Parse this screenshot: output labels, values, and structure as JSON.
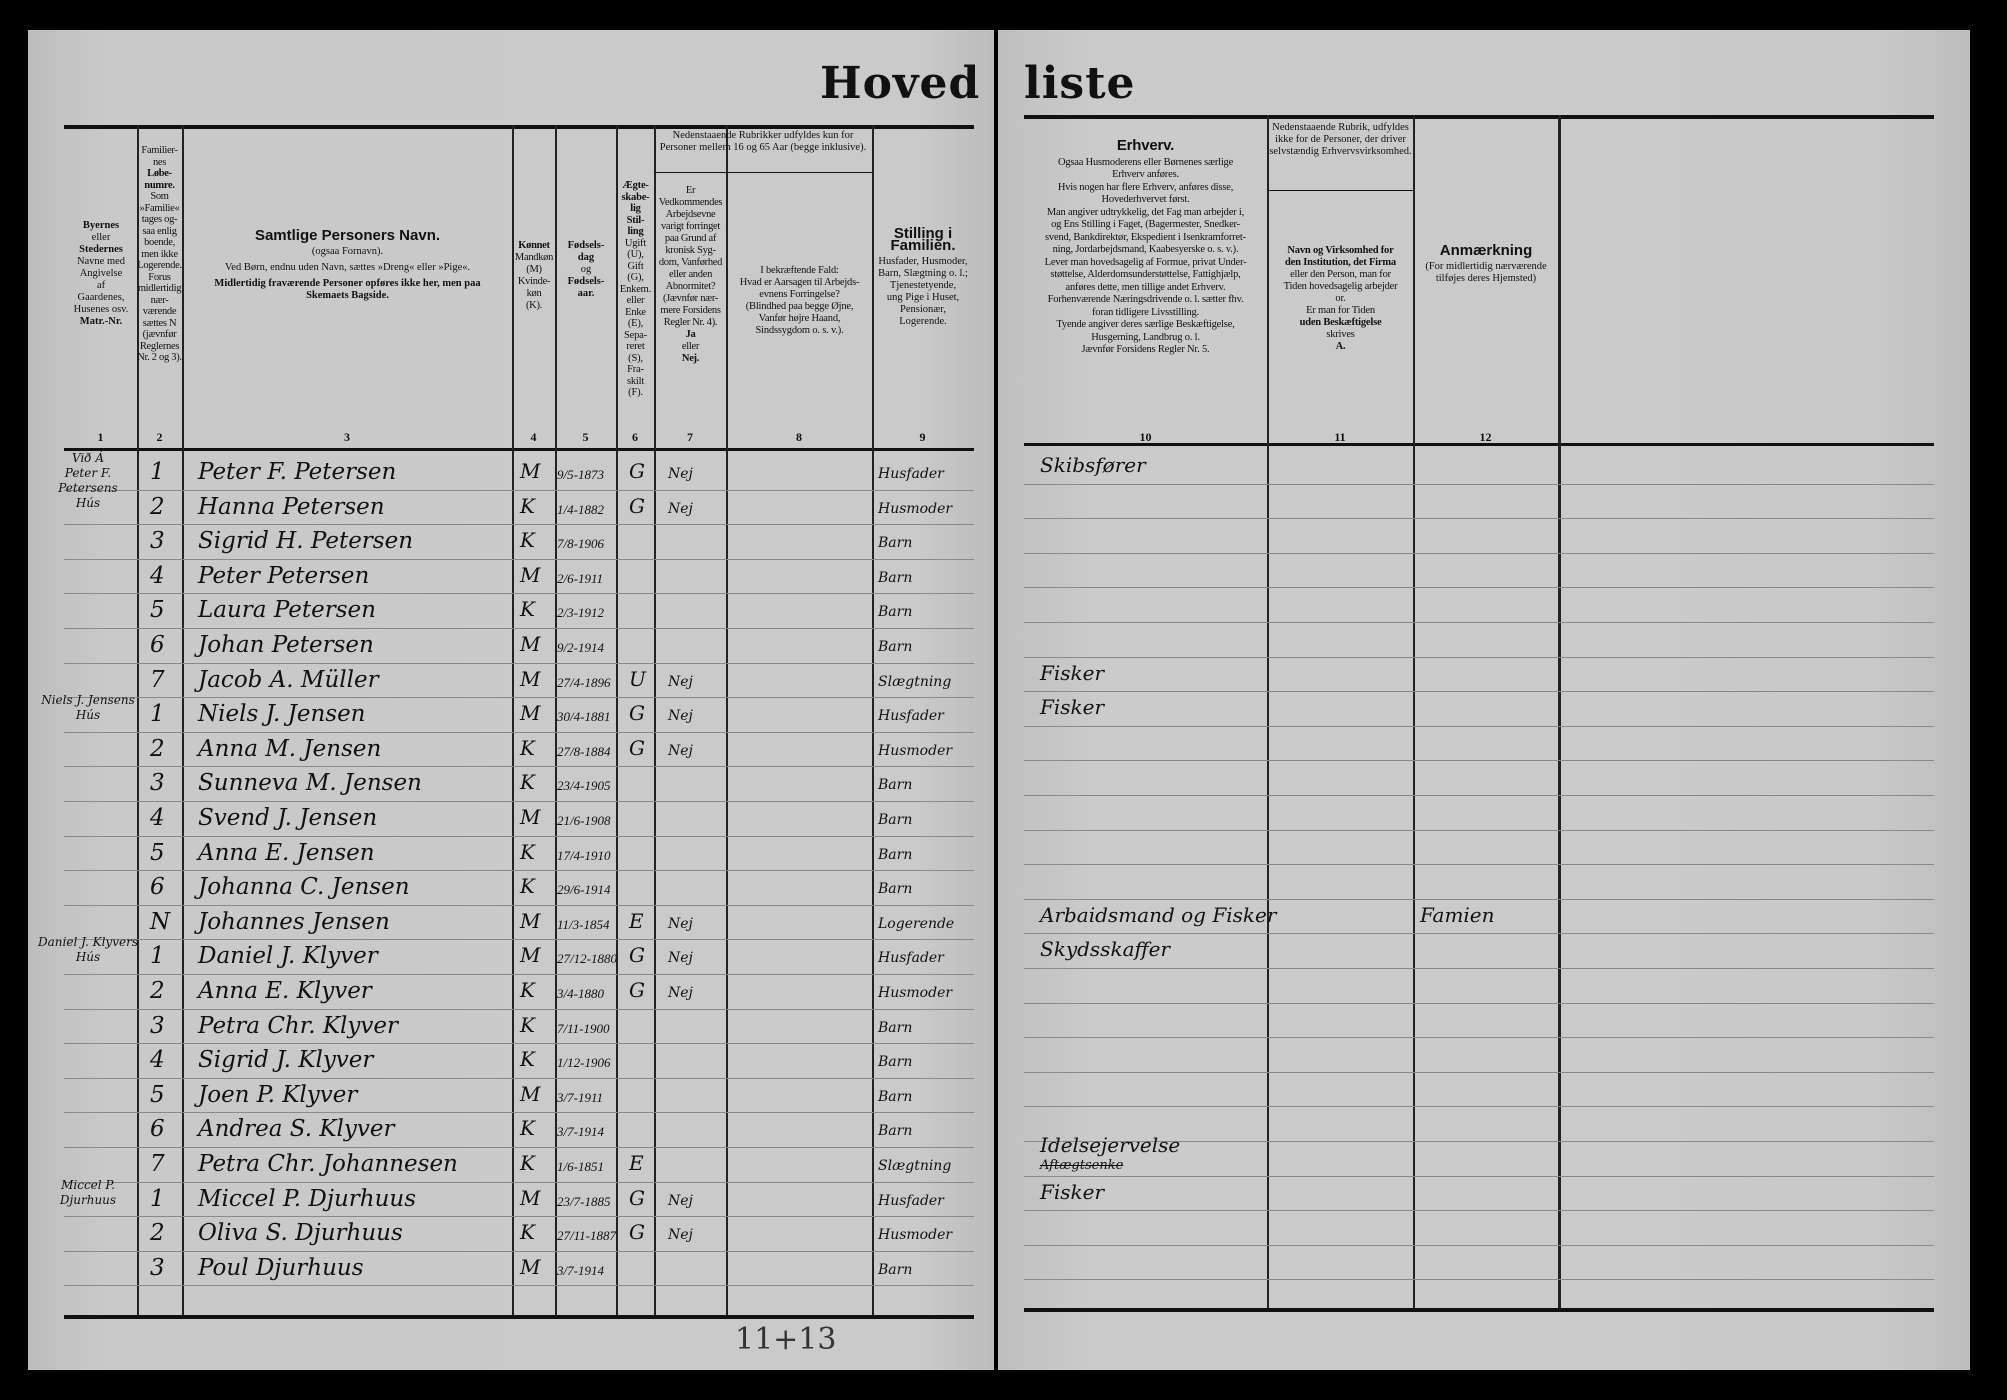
{
  "title": {
    "left": "Hoved",
    "right": "liste"
  },
  "headers": {
    "col1": {
      "lines": [
        "Byernes",
        "eller",
        "Stedernes",
        "Navne med",
        "Angivelse",
        "af",
        "Gaardenes,",
        "Husenes osv.",
        "Matr.-Nr."
      ]
    },
    "col2": {
      "lines": [
        "Familier-",
        "nes",
        "Løbe-",
        "numre.",
        "Som",
        "»Familie«",
        "tages og-",
        "saa enlig",
        "boende,",
        "men ikke",
        "Logerende.",
        "Forus",
        "midlertidig",
        "nær-",
        "værende",
        "sættes N",
        "(jævnfør",
        "Reglernes",
        "Nr. 2 og 3)."
      ]
    },
    "col3": {
      "title": "Samtlige Personers Navn.",
      "l1": "(ogsaa Fornavn).",
      "l2": "Ved Børn, endnu uden Navn, sættes »Dreng« eller »Pige«.",
      "l3": "Midlertidig fraværende Personer opføres ikke her, men paa Skemaets Bagside."
    },
    "col4": {
      "lines": [
        "Kønnet",
        "Mandkøn",
        "(M)",
        "Kvinde-",
        "køn",
        "(K)."
      ]
    },
    "col5": {
      "lines": [
        "Fødsels-",
        "dag",
        "og",
        "Fødsels-",
        "aar."
      ]
    },
    "col6": {
      "lines": [
        "Ægte-",
        "skabe-",
        "lig",
        "Stil-",
        "ling",
        "Ugift",
        "(U),",
        "Gift",
        "(G),",
        "Enkem.",
        "eller",
        "Enke",
        "(E),",
        "Sepa-",
        "reret",
        "(S),",
        "Fra-",
        "skilt",
        "(F)."
      ]
    },
    "col78_group": "Nedenstaaende Rubrikker udfyldes kun for Personer mellem 16 og 65 Aar (begge inklusive).",
    "col7": {
      "lines": [
        "Er",
        "Vedkommendes",
        "Arbejdsevne",
        "varigt forringet",
        "paa Grund af",
        "kronisk Syg-",
        "dom, Vanførhed",
        "eller anden",
        "Abnormitet?",
        "(Jævnfør nær-",
        "mere Forsidens",
        "Regler Nr. 4).",
        "Ja",
        "eller",
        "Nej."
      ]
    },
    "col8": {
      "lines": [
        "I bekræftende Fald:",
        "Hvad er Aarsagen til Arbejds-",
        "evnens Forringelse?",
        "(Blindhed paa begge Øjne,",
        "Vanfør højre Haand,",
        "Sindssygdom o. s. v.)."
      ]
    },
    "col9": {
      "title": "Stilling i Familien.",
      "lines": [
        "Husfader, Husmoder,",
        "Barn, Slægtning o. l.;",
        "Tjenestetyende,",
        "ung Pige i Huset,",
        "Pensionær,",
        "Logerende."
      ]
    },
    "col10": {
      "title": "Erhverv.",
      "lines": [
        "Ogsaa Husmoderens eller Børnenes særlige",
        "Erhverv anføres.",
        "Hvis nogen har flere Erhverv, anføres disse,",
        "Hovederhvervet først.",
        "Man angiver udtrykkelig, det Fag man arbejder i,",
        "og Ens Stilling i Faget, (Bagermester, Snedker-",
        "svend, Bankdirektør, Ekspedient i Isenkramforret-",
        "ning, Jordarbejdsmand, Kaabesyerske o. s. v.).",
        "Lever man hovedsagelig af Formue, privat Under-",
        "støttelse, Alderdomsunderstøttelse, Fattighjælp,",
        "anføres dette, men tillige andet Erhverv.",
        "Forhenværende Næringsdrivende o. l. sætter fhv.",
        "foran tidligere Livsstilling.",
        "Tyende angiver deres særlige Beskæftigelse,",
        "Husgerning, Landbrug o. l.",
        "Jævnfør Forsidens Regler Nr. 5."
      ]
    },
    "col11_group": "Nedenstaaende Rubrik, udfyldes ikke for de Personer, der driver selvstændig Erhvervsvirksomhed.",
    "col11": {
      "lines": [
        "Navn og Virksomhed for",
        "den Institution, det Firma",
        "eller den Person, man for",
        "Tiden hovedsagelig arbejder",
        "or.",
        "Er man for Tiden",
        "uden Beskæftigelse",
        "skrives",
        "A."
      ]
    },
    "col12": {
      "title": "Anmærkning",
      "lines": [
        "(For midlertidig nærværende",
        "tilføjes deres Hjemsted)"
      ]
    },
    "numbers": [
      "1",
      "2",
      "3",
      "4",
      "5",
      "6",
      "7",
      "8",
      "9",
      "10",
      "11",
      "12"
    ]
  },
  "households": [
    {
      "lines": [
        "Við Á",
        "Peter F.",
        "Petersens",
        "Hús"
      ],
      "row": 0
    },
    {
      "lines": [
        "Niels J. Jensens",
        "Hús"
      ],
      "row": 7
    },
    {
      "lines": [
        "Daniel J. Klyvers",
        "Hús"
      ],
      "row": 14
    },
    {
      "lines": [
        "Miccel P.",
        "Djurhuus"
      ],
      "row": 21
    }
  ],
  "rows": [
    {
      "nr": "1",
      "name": "Peter F. Petersen",
      "sex": "M",
      "born": "9/5-1873",
      "civil": "G",
      "disabled": "Nej",
      "position": "Husfader",
      "occupation": "Skibsfører",
      "note": ""
    },
    {
      "nr": "2",
      "name": "Hanna Petersen",
      "sex": "K",
      "born": "1/4-1882",
      "civil": "G",
      "disabled": "Nej",
      "position": "Husmoder",
      "occupation": "",
      "note": ""
    },
    {
      "nr": "3",
      "name": "Sigrid H. Petersen",
      "sex": "K",
      "born": "7/8-1906",
      "civil": "",
      "disabled": "",
      "position": "Barn",
      "occupation": "",
      "note": ""
    },
    {
      "nr": "4",
      "name": "Peter Petersen",
      "sex": "M",
      "born": "2/6-1911",
      "civil": "",
      "disabled": "",
      "position": "Barn",
      "occupation": "",
      "note": ""
    },
    {
      "nr": "5",
      "name": "Laura Petersen",
      "sex": "K",
      "born": "2/3-1912",
      "civil": "",
      "disabled": "",
      "position": "Barn",
      "occupation": "",
      "note": ""
    },
    {
      "nr": "6",
      "name": "Johan Petersen",
      "sex": "M",
      "born": "9/2-1914",
      "civil": "",
      "disabled": "",
      "position": "Barn",
      "occupation": "",
      "note": ""
    },
    {
      "nr": "7",
      "name": "Jacob A. Müller",
      "sex": "M",
      "born": "27/4-1896",
      "civil": "U",
      "disabled": "Nej",
      "position": "Slægtning",
      "occupation": "Fisker",
      "note": ""
    },
    {
      "nr": "1",
      "name": "Niels J. Jensen",
      "sex": "M",
      "born": "30/4-1881",
      "civil": "G",
      "disabled": "Nej",
      "position": "Husfader",
      "occupation": "Fisker",
      "note": ""
    },
    {
      "nr": "2",
      "name": "Anna M. Jensen",
      "sex": "K",
      "born": "27/8-1884",
      "civil": "G",
      "disabled": "Nej",
      "position": "Husmoder",
      "occupation": "",
      "note": ""
    },
    {
      "nr": "3",
      "name": "Sunneva M. Jensen",
      "sex": "K",
      "born": "23/4-1905",
      "civil": "",
      "disabled": "",
      "position": "Barn",
      "occupation": "",
      "note": ""
    },
    {
      "nr": "4",
      "name": "Svend J. Jensen",
      "sex": "M",
      "born": "21/6-1908",
      "civil": "",
      "disabled": "",
      "position": "Barn",
      "occupation": "",
      "note": ""
    },
    {
      "nr": "5",
      "name": "Anna E. Jensen",
      "sex": "K",
      "born": "17/4-1910",
      "civil": "",
      "disabled": "",
      "position": "Barn",
      "occupation": "",
      "note": ""
    },
    {
      "nr": "6",
      "name": "Johanna C. Jensen",
      "sex": "K",
      "born": "29/6-1914",
      "civil": "",
      "disabled": "",
      "position": "Barn",
      "occupation": "",
      "note": ""
    },
    {
      "nr": "N",
      "name": "Johannes Jensen",
      "sex": "M",
      "born": "11/3-1854",
      "civil": "E",
      "disabled": "Nej",
      "position": "Logerende",
      "occupation": "Arbaidsmand og Fisker",
      "note": "Famien"
    },
    {
      "nr": "1",
      "name": "Daniel J. Klyver",
      "sex": "M",
      "born": "27/12-1880",
      "civil": "G",
      "disabled": "Nej",
      "position": "Husfader",
      "occupation": "Skydsskaffer",
      "note": ""
    },
    {
      "nr": "2",
      "name": "Anna E. Klyver",
      "sex": "K",
      "born": "3/4-1880",
      "civil": "G",
      "disabled": "Nej",
      "position": "Husmoder",
      "occupation": "",
      "note": ""
    },
    {
      "nr": "3",
      "name": "Petra Chr. Klyver",
      "sex": "K",
      "born": "7/11-1900",
      "civil": "",
      "disabled": "",
      "position": "Barn",
      "occupation": "",
      "note": ""
    },
    {
      "nr": "4",
      "name": "Sigrid J. Klyver",
      "sex": "K",
      "born": "1/12-1906",
      "civil": "",
      "disabled": "",
      "position": "Barn",
      "occupation": "",
      "note": ""
    },
    {
      "nr": "5",
      "name": "Joen P. Klyver",
      "sex": "M",
      "born": "3/7-1911",
      "civil": "",
      "disabled": "",
      "position": "Barn",
      "occupation": "",
      "note": ""
    },
    {
      "nr": "6",
      "name": "Andrea S. Klyver",
      "sex": "K",
      "born": "3/7-1914",
      "civil": "",
      "disabled": "",
      "position": "Barn",
      "occupation": "",
      "note": ""
    },
    {
      "nr": "7",
      "name": "Petra Chr. Johannesen",
      "sex": "K",
      "born": "1/6-1851",
      "civil": "E",
      "disabled": "",
      "position": "Slægtning",
      "occupation": "Idelsejervelse",
      "occupation_struck": "Aftægtsenke",
      "note": ""
    },
    {
      "nr": "1",
      "name": "Miccel P. Djurhuus",
      "sex": "M",
      "born": "23/7-1885",
      "civil": "G",
      "disabled": "Nej",
      "position": "Husfader",
      "occupation": "Fisker",
      "note": ""
    },
    {
      "nr": "2",
      "name": "Oliva S. Djurhuus",
      "sex": "K",
      "born": "27/11-1887",
      "civil": "G",
      "disabled": "Nej",
      "position": "Husmoder",
      "occupation": "",
      "note": ""
    },
    {
      "nr": "3",
      "name": "Poul Djurhuus",
      "sex": "M",
      "born": "3/7-1914",
      "civil": "",
      "disabled": "",
      "position": "Barn",
      "occupation": "",
      "note": ""
    }
  ],
  "footer_note": "11+13"
}
